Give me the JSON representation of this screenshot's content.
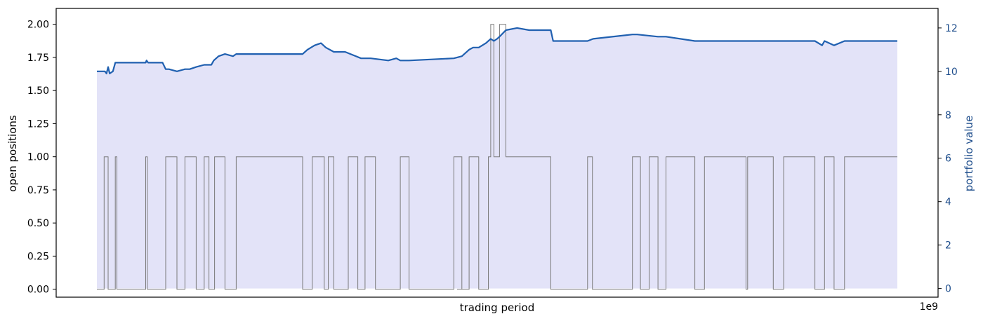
{
  "chart_data": {
    "type": "line",
    "xlabel": "trading period",
    "offset_label": "1e9",
    "y_left": {
      "label": "open positions",
      "lim": [
        -0.06,
        2.12
      ],
      "ticks": [
        0.0,
        0.25,
        0.5,
        0.75,
        1.0,
        1.25,
        1.5,
        1.75,
        2.0
      ],
      "tick_labels": [
        "0.00",
        "0.25",
        "0.50",
        "0.75",
        "1.00",
        "1.25",
        "1.50",
        "1.75",
        "2.00"
      ]
    },
    "y_right": {
      "label": "portfolio value",
      "lim": [
        -0.4,
        12.9
      ],
      "ticks": [
        0,
        2,
        4,
        6,
        8,
        10,
        12
      ],
      "tick_labels": [
        "0",
        "2",
        "4",
        "6",
        "8",
        "10",
        "12"
      ]
    },
    "x_lim": [
      0,
      100
    ],
    "colors": {
      "portfolio_line": "#2060b0",
      "fill": "#e3e3f8",
      "positions_line": "#7a7a7a",
      "right_axis": "#1f4e8c"
    },
    "series": [
      {
        "name": "open positions",
        "axis": "left",
        "x": [
          0,
          0.9,
          0.9,
          1.4,
          1.4,
          2.3,
          2.3,
          2.5,
          2.5,
          6.1,
          6.1,
          6.3,
          6.3,
          8.6,
          8.6,
          10.0,
          10.0,
          11.0,
          11.0,
          12.4,
          12.4,
          13.4,
          13.4,
          14.0,
          14.0,
          14.7,
          14.7,
          16.0,
          16.0,
          17.4,
          17.4,
          25.7,
          25.7,
          26.9,
          26.9,
          28.4,
          28.4,
          28.9,
          28.9,
          29.6,
          29.6,
          31.4,
          31.4,
          32.6,
          32.6,
          33.5,
          33.5,
          34.8,
          34.8,
          37.9,
          37.9,
          39.0,
          39.0,
          44.6,
          44.6,
          45.6,
          45.6,
          45.0,
          45.0,
          46.5,
          46.5,
          47.7,
          47.7,
          48.9,
          48.9,
          49.2,
          49.2,
          49.6,
          49.6,
          50.3,
          50.3,
          51.1,
          51.1,
          56.7,
          56.7,
          61.3,
          61.3,
          61.9,
          61.9,
          66.9,
          66.9,
          67.9,
          67.9,
          69.0,
          69.0,
          70.1,
          70.1,
          71.1,
          71.1,
          74.7,
          74.7,
          75.9,
          75.9,
          81.1,
          81.1,
          81.3,
          81.3,
          84.5,
          84.5,
          85.8,
          85.8,
          89.7,
          89.7,
          90.9,
          90.9,
          92.1,
          92.1,
          93.4,
          93.4,
          100
        ],
        "values": [
          0,
          0,
          1,
          1,
          0,
          0,
          1,
          1,
          0,
          0,
          1,
          1,
          0,
          0,
          1,
          1,
          0,
          0,
          1,
          1,
          0,
          0,
          1,
          1,
          0,
          0,
          1,
          1,
          0,
          0,
          1,
          1,
          0,
          0,
          1,
          1,
          0,
          0,
          1,
          1,
          0,
          0,
          1,
          1,
          0,
          0,
          1,
          1,
          0,
          0,
          1,
          1,
          0,
          0,
          1,
          1,
          0,
          0,
          0,
          0,
          1,
          1,
          0,
          0,
          1,
          1,
          2,
          2,
          1,
          1,
          2,
          2,
          1,
          1,
          0,
          0,
          1,
          1,
          0,
          0,
          1,
          1,
          0,
          0,
          1,
          1,
          0,
          0,
          1,
          1,
          0,
          0,
          1,
          1,
          0,
          0,
          1,
          1,
          0,
          0,
          1,
          1,
          0,
          0,
          1,
          1,
          0,
          0,
          1,
          1
        ]
      },
      {
        "name": "portfolio value",
        "axis": "right",
        "x": [
          0,
          1.0,
          1.2,
          1.4,
          1.6,
          2.0,
          2.3,
          2.4,
          6.1,
          6.2,
          6.4,
          8.2,
          8.6,
          9.0,
          10.0,
          11.0,
          11.6,
          12.4,
          13.4,
          13.8,
          14.0,
          14.3,
          14.6,
          15.2,
          16.0,
          17.0,
          17.4,
          20.0,
          25.7,
          26.3,
          27.2,
          28.0,
          28.6,
          29.6,
          31.0,
          33.0,
          34.2,
          36.4,
          37.4,
          37.9,
          39.0,
          44.6,
          45.6,
          46.5,
          47.0,
          47.7,
          48.6,
          49.2,
          49.6,
          50.0,
          50.3,
          51.1,
          52.5,
          54.0,
          55.0,
          56.7,
          57.0,
          61.3,
          62.0,
          66.9,
          67.5,
          70.1,
          71.1,
          74.7,
          75.9,
          81.1,
          84.5,
          89.7,
          90.6,
          90.9,
          92.1,
          93.4,
          100
        ],
        "values": [
          10.0,
          10.0,
          9.9,
          10.2,
          9.9,
          10.0,
          10.4,
          10.4,
          10.4,
          10.5,
          10.4,
          10.4,
          10.1,
          10.1,
          10.0,
          10.1,
          10.1,
          10.2,
          10.3,
          10.3,
          10.3,
          10.3,
          10.5,
          10.7,
          10.8,
          10.7,
          10.8,
          10.8,
          10.8,
          11.0,
          11.2,
          11.3,
          11.1,
          10.9,
          10.9,
          10.6,
          10.6,
          10.5,
          10.6,
          10.5,
          10.5,
          10.6,
          10.7,
          11.0,
          11.1,
          11.1,
          11.3,
          11.5,
          11.4,
          11.5,
          11.6,
          11.9,
          12.0,
          11.9,
          11.9,
          11.9,
          11.4,
          11.4,
          11.5,
          11.7,
          11.7,
          11.6,
          11.6,
          11.4,
          11.4,
          11.4,
          11.4,
          11.4,
          11.2,
          11.4,
          11.2,
          11.4,
          11.4
        ]
      }
    ]
  }
}
